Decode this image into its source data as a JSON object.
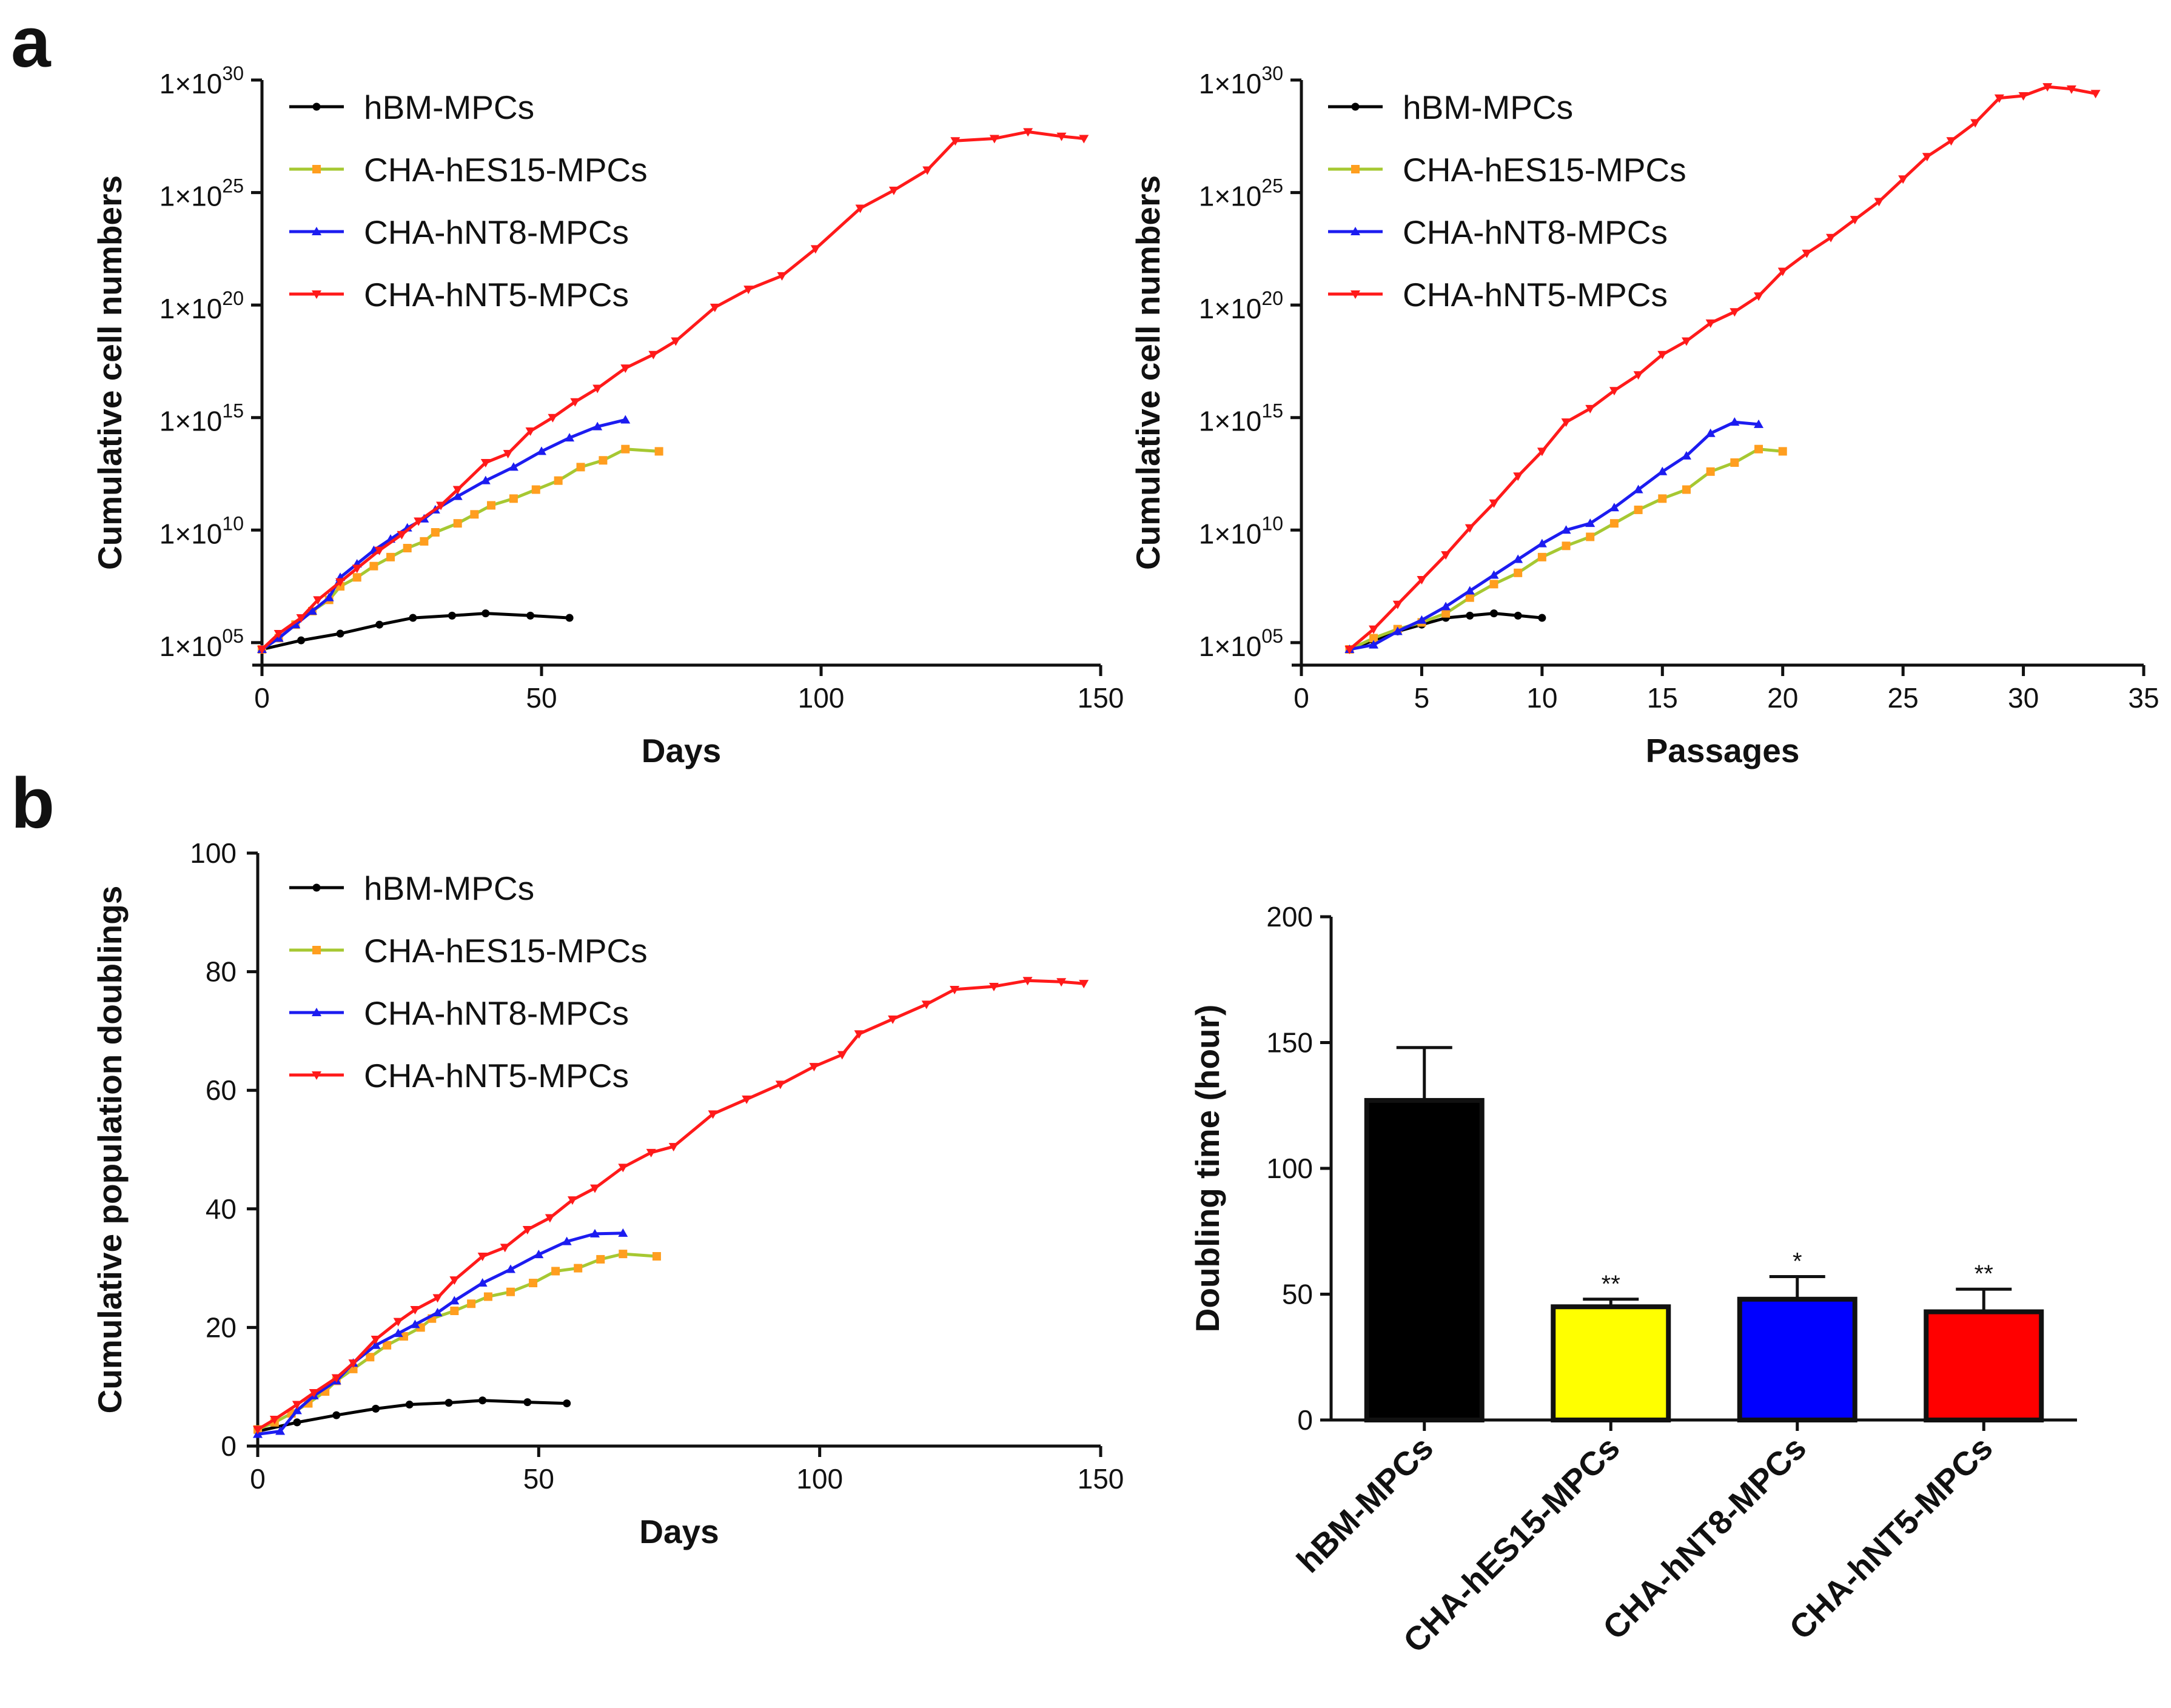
{
  "panel_labels": [
    "a",
    "b"
  ],
  "colors": {
    "hBM-MPCs": "#000000",
    "CHA-hES15-MPCs": "#ff9e1f",
    "CHA-hES15-MPCs_line": "#a6c832",
    "CHA-hNT8-MPCs": "#1c1cf0",
    "CHA-hNT5-MPCs": "#ff1a1a",
    "bar_hBM": "#000000",
    "bar_hES15": "#ffff00",
    "bar_hNT8": "#0000ff",
    "bar_hNT5": "#ff0000"
  },
  "chart_data": [
    {
      "id": "a-days",
      "type": "line",
      "yscale": "log10",
      "xlabel": "Days",
      "ylabel": "Cumulative cell numbers",
      "xlim": [
        0,
        150
      ],
      "xticks": [
        "0",
        "50",
        "100",
        "150"
      ],
      "ylim_exp": [
        4,
        30
      ],
      "yticks": [
        {
          "base": "1×10",
          "exp": "30"
        },
        {
          "base": "1×10",
          "exp": "25"
        },
        {
          "base": "1×10",
          "exp": "20"
        },
        {
          "base": "1×10",
          "exp": "15"
        },
        {
          "base": "1×10",
          "exp": "10"
        },
        {
          "base": "1×10",
          "exp": "05"
        }
      ],
      "legend": [
        "hBM-MPCs",
        "CHA-hES15-MPCs",
        "CHA-hNT8-MPCs",
        "CHA-hNT5-MPCs"
      ],
      "series": [
        {
          "name": "hBM-MPCs",
          "marker": "circle",
          "x": [
            0,
            7,
            14,
            21,
            27,
            34,
            40,
            48,
            55
          ],
          "y": [
            4.7,
            5.1,
            5.4,
            5.8,
            6.1,
            6.2,
            6.3,
            6.2,
            6.1
          ]
        },
        {
          "name": "CHA-hES15-MPCs",
          "marker": "square",
          "x": [
            0,
            3,
            6,
            9,
            12,
            14,
            17,
            20,
            23,
            26,
            29,
            31,
            35,
            38,
            41,
            45,
            49,
            53,
            57,
            61,
            65,
            71
          ],
          "y": [
            4.7,
            5.2,
            5.8,
            6.4,
            6.9,
            7.5,
            7.9,
            8.4,
            8.8,
            9.2,
            9.5,
            9.9,
            10.3,
            10.7,
            11.1,
            11.4,
            11.8,
            12.2,
            12.8,
            13.1,
            13.6,
            13.5
          ]
        },
        {
          "name": "CHA-hNT8-MPCs",
          "marker": "triangle-up",
          "x": [
            0,
            3,
            6,
            9,
            12,
            14,
            17,
            20,
            23,
            26,
            29,
            31,
            35,
            40,
            45,
            50,
            55,
            60,
            65
          ],
          "y": [
            4.7,
            5.2,
            5.8,
            6.4,
            7.0,
            7.9,
            8.5,
            9.1,
            9.6,
            10.1,
            10.5,
            10.9,
            11.5,
            12.2,
            12.8,
            13.5,
            14.1,
            14.6,
            14.9
          ]
        },
        {
          "name": "CHA-hNT5-MPCs",
          "marker": "triangle-down",
          "x": [
            0,
            3,
            7,
            10,
            14,
            17,
            21,
            25,
            28,
            32,
            35,
            40,
            44,
            48,
            52,
            56,
            60,
            65,
            70,
            74,
            81,
            87,
            93,
            99,
            107,
            113,
            119,
            124,
            131,
            137,
            143,
            147
          ],
          "y": [
            4.7,
            5.4,
            6.1,
            6.9,
            7.7,
            8.3,
            9.1,
            9.8,
            10.4,
            11.1,
            11.8,
            13.0,
            13.4,
            14.4,
            15.0,
            15.7,
            16.3,
            17.2,
            17.8,
            18.4,
            19.9,
            20.7,
            21.3,
            22.5,
            24.3,
            25.1,
            26.0,
            27.3,
            27.4,
            27.7,
            27.5,
            27.4
          ]
        }
      ]
    },
    {
      "id": "a-passages",
      "type": "line",
      "yscale": "log10",
      "xlabel": "Passages",
      "ylabel": "Cumulative cell numbers",
      "xlim": [
        0,
        35
      ],
      "xticks": [
        "0",
        "5",
        "10",
        "15",
        "20",
        "25",
        "30",
        "35"
      ],
      "ylim_exp": [
        4,
        30
      ],
      "yticks": [
        {
          "base": "1×10",
          "exp": "30"
        },
        {
          "base": "1×10",
          "exp": "25"
        },
        {
          "base": "1×10",
          "exp": "20"
        },
        {
          "base": "1×10",
          "exp": "15"
        },
        {
          "base": "1×10",
          "exp": "10"
        },
        {
          "base": "1×10",
          "exp": "05"
        }
      ],
      "legend": [
        "hBM-MPCs",
        "CHA-hES15-MPCs",
        "CHA-hNT8-MPCs",
        "CHA-hNT5-MPCs"
      ],
      "series": [
        {
          "name": "hBM-MPCs",
          "marker": "circle",
          "x": [
            2,
            3,
            4,
            5,
            6,
            7,
            8,
            9,
            10
          ],
          "y": [
            4.7,
            5.1,
            5.5,
            5.8,
            6.1,
            6.2,
            6.3,
            6.2,
            6.1
          ]
        },
        {
          "name": "CHA-hES15-MPCs",
          "marker": "square",
          "x": [
            2,
            3,
            4,
            5,
            6,
            7,
            8,
            9,
            10,
            11,
            12,
            13,
            14,
            15,
            16,
            17,
            18,
            19,
            20
          ],
          "y": [
            4.7,
            5.2,
            5.6,
            5.9,
            6.3,
            7.0,
            7.6,
            8.1,
            8.8,
            9.3,
            9.7,
            10.3,
            10.9,
            11.4,
            11.8,
            12.6,
            13.0,
            13.6,
            13.5
          ]
        },
        {
          "name": "CHA-hNT8-MPCs",
          "marker": "triangle-up",
          "x": [
            2,
            3,
            4,
            5,
            6,
            7,
            8,
            9,
            10,
            11,
            12,
            13,
            14,
            15,
            16,
            17,
            18,
            19
          ],
          "y": [
            4.7,
            4.9,
            5.5,
            6.0,
            6.6,
            7.3,
            8.0,
            8.7,
            9.4,
            10.0,
            10.3,
            11.0,
            11.8,
            12.6,
            13.3,
            14.3,
            14.8,
            14.7
          ]
        },
        {
          "name": "CHA-hNT5-MPCs",
          "marker": "triangle-down",
          "x": [
            2,
            3,
            4,
            5,
            6,
            7,
            8,
            9,
            10,
            11,
            12,
            13,
            14,
            15,
            16,
            17,
            18,
            19,
            20,
            21,
            22,
            23,
            24,
            25,
            26,
            27,
            28,
            29,
            30,
            31,
            32,
            33
          ],
          "y": [
            4.7,
            5.6,
            6.7,
            7.8,
            8.9,
            10.1,
            11.2,
            12.4,
            13.5,
            14.8,
            15.4,
            16.2,
            16.9,
            17.8,
            18.4,
            19.2,
            19.7,
            20.4,
            21.5,
            22.3,
            23.0,
            23.8,
            24.6,
            25.6,
            26.6,
            27.3,
            28.1,
            29.2,
            29.3,
            29.7,
            29.6,
            29.4
          ]
        }
      ]
    },
    {
      "id": "b-doublings",
      "type": "line",
      "yscale": "linear",
      "xlabel": "Days",
      "ylabel": "Cumulative population doublings",
      "xlim": [
        0,
        150
      ],
      "xticks": [
        "0",
        "50",
        "100",
        "150"
      ],
      "ylim": [
        0,
        100
      ],
      "yticks": [
        "0",
        "20",
        "40",
        "60",
        "80",
        "100"
      ],
      "legend": [
        "hBM-MPCs",
        "CHA-hES15-MPCs",
        "CHA-hNT8-MPCs",
        "CHA-hNT5-MPCs"
      ],
      "series": [
        {
          "name": "hBM-MPCs",
          "marker": "circle",
          "x": [
            0,
            7,
            14,
            21,
            27,
            34,
            40,
            48,
            55
          ],
          "y": [
            2.5,
            4,
            5.2,
            6.3,
            7.0,
            7.3,
            7.7,
            7.4,
            7.2
          ]
        },
        {
          "name": "CHA-hES15-MPCs",
          "marker": "square",
          "x": [
            0,
            3,
            6,
            9,
            12,
            14,
            17,
            20,
            23,
            26,
            29,
            31,
            35,
            38,
            41,
            45,
            49,
            53,
            57,
            61,
            65,
            71
          ],
          "y": [
            2.8,
            4,
            5.5,
            7.2,
            9.2,
            11,
            13,
            15,
            17,
            18.5,
            20,
            21.5,
            22.8,
            24,
            25.2,
            26,
            27.5,
            29.5,
            30,
            31.5,
            32.4,
            32
          ]
        },
        {
          "name": "CHA-hNT8-MPCs",
          "marker": "triangle-up",
          "x": [
            0,
            4,
            7,
            10,
            14,
            17,
            21,
            25,
            28,
            32,
            35,
            40,
            45,
            50,
            55,
            60,
            65
          ],
          "y": [
            2,
            2.5,
            6,
            8.5,
            11,
            14,
            17,
            19,
            20.5,
            22.5,
            24.5,
            27.5,
            29.8,
            32.3,
            34.5,
            35.8,
            35.9
          ]
        },
        {
          "name": "CHA-hNT5-MPCs",
          "marker": "triangle-down",
          "x": [
            0,
            3,
            7,
            10,
            14,
            17,
            21,
            25,
            28,
            32,
            35,
            40,
            44,
            48,
            52,
            56,
            60,
            65,
            70,
            74,
            81,
            87,
            93,
            99,
            104,
            107,
            113,
            119,
            124,
            131,
            137,
            143,
            147
          ],
          "y": [
            2.8,
            4.5,
            7,
            9,
            11.5,
            14,
            18,
            21,
            23,
            25,
            28,
            32,
            33.5,
            36.5,
            38.5,
            41.5,
            43.5,
            47,
            49.5,
            50.5,
            56,
            58.5,
            61,
            64,
            66,
            69.5,
            72,
            74.5,
            77,
            77.5,
            78.5,
            78.3,
            78
          ]
        }
      ]
    },
    {
      "id": "b-doubling-time",
      "type": "bar",
      "ylabel": "Doubling time (hour)",
      "ylim": [
        0,
        200
      ],
      "yticks": [
        "0",
        "50",
        "100",
        "150",
        "200"
      ],
      "categories": [
        "hBM-MPCs",
        "CHA-hES15-MPCs",
        "CHA-hNT8-MPCs",
        "CHA-hNT5-MPCs"
      ],
      "values": [
        127,
        45,
        48,
        43
      ],
      "errors": [
        21,
        3,
        9,
        9
      ],
      "significance": [
        "",
        "**",
        "*",
        "**"
      ]
    }
  ]
}
